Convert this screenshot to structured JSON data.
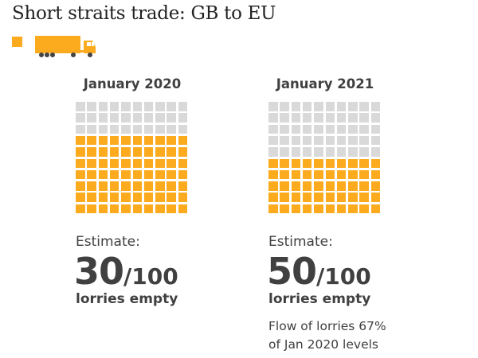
{
  "title": "Short straits trade: GB to EU",
  "legend": {
    "icon": "lorry-icon"
  },
  "colors": {
    "filled": "#fcab1f",
    "empty": "#d9d9d9",
    "text": "#404040"
  },
  "chart_data": {
    "type": "waffle",
    "title": "Short straits trade: GB to EU",
    "grid": [
      10,
      10
    ],
    "panels": [
      {
        "label": "January 2020",
        "estimate_label": "Estimate:",
        "empty": 30,
        "total": 100,
        "number": "30",
        "denominator": "/100",
        "caption": "lorries empty",
        "note": []
      },
      {
        "label": "January 2021",
        "estimate_label": "Estimate:",
        "empty": 50,
        "total": 100,
        "number": "50",
        "denominator": "/100",
        "caption": "lorries empty",
        "note": [
          "Flow of lorries 67%",
          "of Jan 2020 levels"
        ]
      }
    ]
  }
}
